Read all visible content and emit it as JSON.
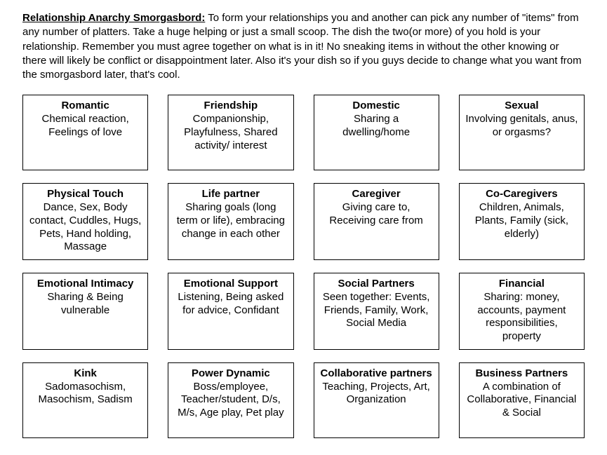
{
  "heading": {
    "title": "Relationship Anarchy Smorgasbord:",
    "body": "To form your relationships you and another can pick any number of \"items\" from any number of platters.  Take a huge helping or just a small scoop.  The dish the two(or more) of you hold is your relationship.  Remember you must agree together on what is in it! No sneaking items in without the other knowing or there will likely be conflict or disappointment later. Also it's your dish so if you guys decide to change what you want from the smorgasbord later, that's cool."
  },
  "layout": {
    "columns": 4,
    "rows": 4,
    "cell_border_color": "#000000",
    "background_color": "#ffffff",
    "font_family": "Arial",
    "title_fontsize": 15,
    "body_fontsize": 15
  },
  "cells": [
    {
      "title": "Romantic",
      "desc": "Chemical reaction, Feelings of love"
    },
    {
      "title": "Friendship",
      "desc": "Companionship, Playfulness, Shared activity/ interest"
    },
    {
      "title": "Domestic",
      "desc": "Sharing a dwelling/home"
    },
    {
      "title": "Sexual",
      "desc": "Involving genitals, anus, or orgasms?"
    },
    {
      "title": "Physical Touch",
      "desc": "Dance, Sex, Body contact, Cuddles, Hugs, Pets, Hand holding, Massage"
    },
    {
      "title": "Life partner",
      "desc": "Sharing goals (long term or life), embracing change in each other"
    },
    {
      "title": "Caregiver",
      "desc": "Giving care to, Receiving care from"
    },
    {
      "title": "Co-Caregivers",
      "desc": "Children, Animals, Plants, Family (sick, elderly)"
    },
    {
      "title": "Emotional Intimacy",
      "desc": "Sharing & Being vulnerable"
    },
    {
      "title": "Emotional Support",
      "desc": "Listening, Being asked for advice, Confidant"
    },
    {
      "title": "Social Partners",
      "desc": "Seen together: Events, Friends, Family, Work, Social Media"
    },
    {
      "title": "Financial",
      "desc": "Sharing: money, accounts, payment responsibilities, property"
    },
    {
      "title": "Kink",
      "desc": "Sadomasochism, Masochism, Sadism"
    },
    {
      "title": "Power Dynamic",
      "desc": "Boss/employee, Teacher/student, D/s, M/s, Age play, Pet play"
    },
    {
      "title": "Collaborative partners",
      "desc": "Teaching, Projects, Art, Organization"
    },
    {
      "title": "Business Partners",
      "desc": "A combination of Collaborative, Financial & Social"
    }
  ]
}
